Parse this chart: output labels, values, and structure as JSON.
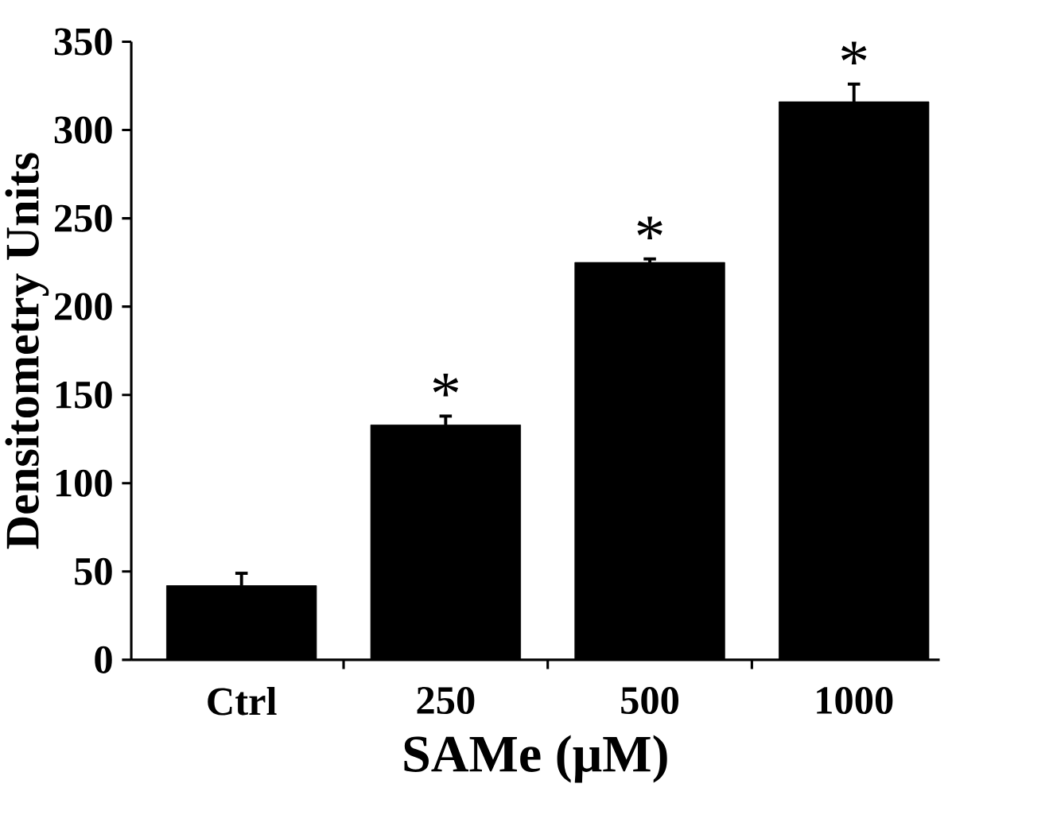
{
  "chart_data": {
    "type": "bar",
    "xlabel": "SAMe (μM)",
    "ylabel": "Densitometry Units",
    "categories": [
      "Ctrl",
      "250",
      "500",
      "1000"
    ],
    "values": [
      42,
      133,
      225,
      316
    ],
    "errors": [
      7,
      5,
      2,
      10
    ],
    "color": "#000000",
    "ylim": [
      0,
      350
    ],
    "yticks": [
      0,
      50,
      100,
      150,
      200,
      250,
      300,
      350
    ],
    "annotations": [
      {
        "text": "*",
        "x": "250",
        "y": 138
      },
      {
        "text": "*",
        "x": "500",
        "y": 227
      },
      {
        "text": "*",
        "x": "1000",
        "y": 326
      }
    ]
  }
}
